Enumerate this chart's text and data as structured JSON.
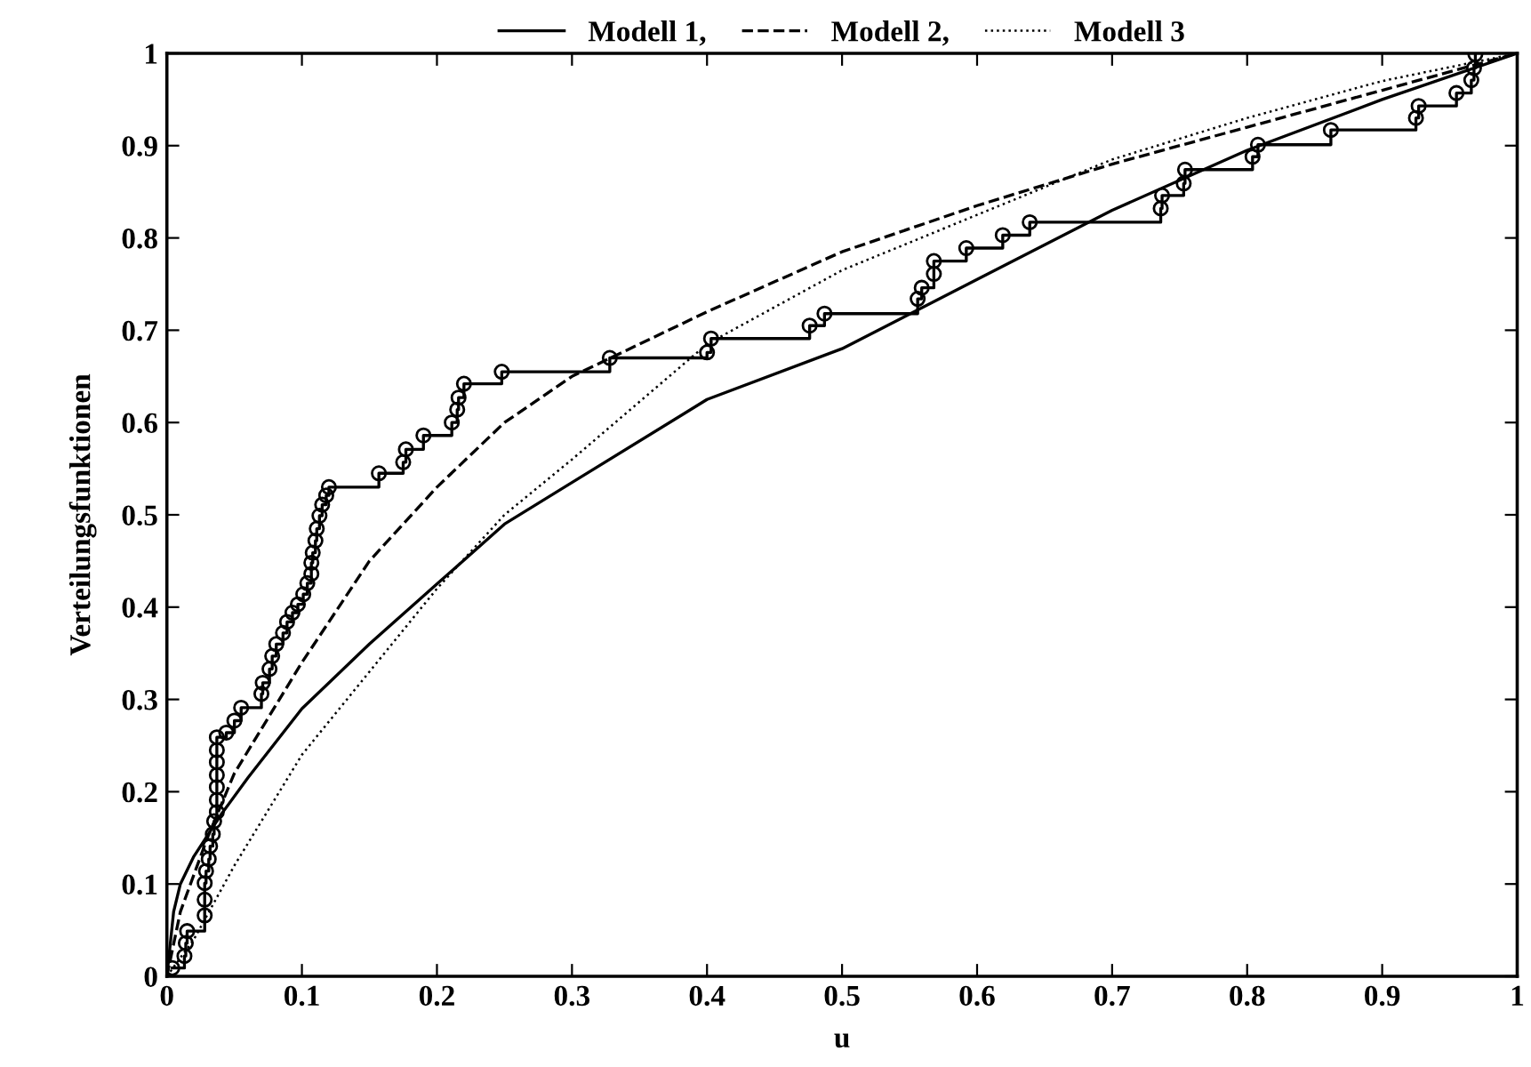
{
  "chart_data": {
    "type": "line",
    "xlabel": "u",
    "ylabel": "Verteilungsfunktionen",
    "xlim": [
      0,
      1
    ],
    "ylim": [
      0,
      1
    ],
    "xticks": [
      0,
      0.1,
      0.2,
      0.3,
      0.4,
      0.5,
      0.6,
      0.7,
      0.8,
      0.9,
      1
    ],
    "yticks": [
      0,
      0.1,
      0.2,
      0.3,
      0.4,
      0.5,
      0.6,
      0.7,
      0.8,
      0.9,
      1
    ],
    "grid": false,
    "legend": "top",
    "series": [
      {
        "type": "step",
        "color": "#000000",
        "marker": "circle",
        "line_style": "solid",
        "x": [
          0.004,
          0.013,
          0.014,
          0.015,
          0.028,
          0.028,
          0.028,
          0.029,
          0.031,
          0.032,
          0.034,
          0.035,
          0.037,
          0.037,
          0.037,
          0.037,
          0.037,
          0.037,
          0.037,
          0.044,
          0.05,
          0.055,
          0.07,
          0.071,
          0.076,
          0.078,
          0.081,
          0.086,
          0.089,
          0.093,
          0.097,
          0.101,
          0.104,
          0.107,
          0.107,
          0.108,
          0.11,
          0.111,
          0.113,
          0.115,
          0.118,
          0.12,
          0.157,
          0.175,
          0.177,
          0.19,
          0.211,
          0.215,
          0.216,
          0.22,
          0.248,
          0.328,
          0.4,
          0.403,
          0.476,
          0.487,
          0.556,
          0.559,
          0.568,
          0.568,
          0.592,
          0.619,
          0.639,
          0.736,
          0.737,
          0.753,
          0.754,
          0.804,
          0.808,
          0.862,
          0.925,
          0.927,
          0.955,
          0.966,
          0.968,
          0.969
        ],
        "values": [
          0.009,
          0.022,
          0.036,
          0.049,
          0.066,
          0.083,
          0.101,
          0.114,
          0.127,
          0.141,
          0.154,
          0.168,
          0.178,
          0.191,
          0.205,
          0.218,
          0.232,
          0.245,
          0.259,
          0.264,
          0.277,
          0.291,
          0.306,
          0.318,
          0.333,
          0.347,
          0.36,
          0.372,
          0.384,
          0.394,
          0.403,
          0.414,
          0.426,
          0.436,
          0.448,
          0.459,
          0.472,
          0.485,
          0.499,
          0.511,
          0.521,
          0.53,
          0.545,
          0.557,
          0.571,
          0.586,
          0.6,
          0.614,
          0.627,
          0.642,
          0.655,
          0.67,
          0.676,
          0.691,
          0.705,
          0.718,
          0.734,
          0.746,
          0.761,
          0.775,
          0.789,
          0.803,
          0.817,
          0.832,
          0.846,
          0.859,
          0.874,
          0.888,
          0.901,
          0.917,
          0.93,
          0.943,
          0.957,
          0.971,
          0.984,
          0.999
        ]
      },
      {
        "name": "Modell 1,",
        "color": "#000000",
        "marker": "none",
        "line_style": "solid",
        "x": [
          0,
          0.005,
          0.01,
          0.02,
          0.04,
          0.06,
          0.1,
          0.15,
          0.2,
          0.25,
          0.3,
          0.4,
          0.5,
          0.6,
          0.7,
          0.8,
          0.9,
          1
        ],
        "values": [
          0,
          0.07,
          0.1,
          0.13,
          0.175,
          0.215,
          0.29,
          0.36,
          0.425,
          0.49,
          0.535,
          0.625,
          0.68,
          0.755,
          0.83,
          0.895,
          0.95,
          1
        ]
      },
      {
        "name": "Modell 2,",
        "color": "#000000",
        "marker": "none",
        "line_style": "dashed",
        "x": [
          0,
          0.01,
          0.03,
          0.05,
          0.1,
          0.15,
          0.2,
          0.25,
          0.3,
          0.4,
          0.5,
          0.6,
          0.7,
          0.8,
          0.9,
          1
        ],
        "values": [
          0,
          0.07,
          0.15,
          0.22,
          0.34,
          0.45,
          0.53,
          0.6,
          0.65,
          0.72,
          0.785,
          0.835,
          0.88,
          0.92,
          0.96,
          1
        ]
      },
      {
        "name": "Modell 3",
        "color": "#000000",
        "marker": "none",
        "line_style": "dotted",
        "x": [
          0,
          0.02,
          0.05,
          0.1,
          0.15,
          0.2,
          0.25,
          0.3,
          0.4,
          0.5,
          0.6,
          0.7,
          0.8,
          0.9,
          1
        ],
        "values": [
          0,
          0.04,
          0.12,
          0.24,
          0.33,
          0.42,
          0.5,
          0.56,
          0.685,
          0.765,
          0.825,
          0.885,
          0.93,
          0.97,
          1
        ]
      }
    ]
  }
}
